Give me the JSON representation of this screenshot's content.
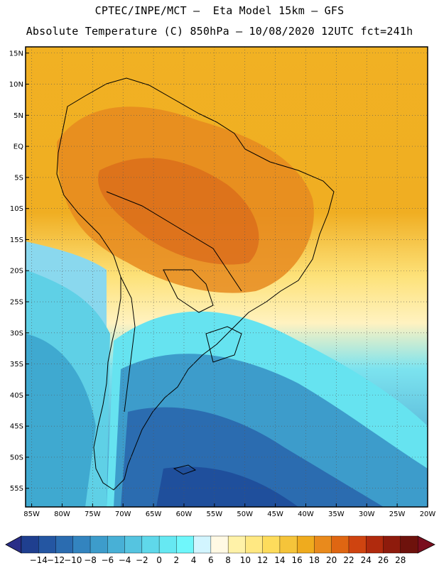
{
  "header": {
    "line1": "CPTEC/INPE/MCT –  Eta Model 15km – GFS",
    "line2": "Absolute Temperature (C) 850hPa – 10/08/2020 12UTC fct=241h"
  },
  "map": {
    "lat_labels": [
      "15N",
      "10N",
      "5N",
      "EQ",
      "5S",
      "10S",
      "15S",
      "20S",
      "25S",
      "30S",
      "35S",
      "40S",
      "45S",
      "50S",
      "55S"
    ],
    "lon_labels": [
      "85W",
      "80W",
      "75W",
      "70W",
      "65W",
      "60W",
      "55W",
      "50W",
      "45W",
      "40W",
      "35W",
      "30W",
      "25W",
      "20W"
    ],
    "lon_range_deg": [
      -86,
      -20
    ],
    "lat_range_deg": [
      -58,
      16
    ],
    "grid": "dotted"
  },
  "colorbar": {
    "labels": [
      "-14",
      "-12",
      "-10",
      "-8",
      "-6",
      "-4",
      "-2",
      "0",
      "2",
      "4",
      "6",
      "8",
      "10",
      "12",
      "14",
      "16",
      "18",
      "20",
      "22",
      "24",
      "26",
      "28"
    ],
    "colors": [
      "#1f3f8f",
      "#2456a2",
      "#2b6cb0",
      "#3384bf",
      "#3d9ccb",
      "#48b0d6",
      "#55c4e0",
      "#5fd8ea",
      "#66e8f2",
      "#6ff7fb",
      "#d2f5ff",
      "#fff9e4",
      "#fff2a8",
      "#ffe882",
      "#fddc5c",
      "#f5c43a",
      "#efab1e",
      "#e98a1c",
      "#df6612",
      "#cf4410",
      "#b02a0d",
      "#8e1b0c",
      "#6e120c"
    ],
    "low_color": "#2a2e88",
    "high_color": "#7a0e1e"
  }
}
